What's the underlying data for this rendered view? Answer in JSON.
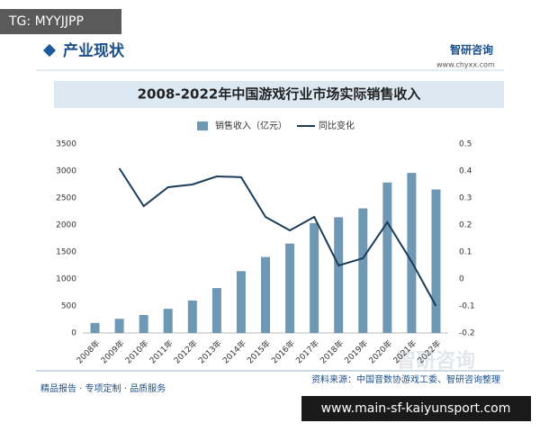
{
  "overlay_top": "TG: MYYJJPP",
  "header": {
    "title": "产业现状",
    "brand": "智研咨询",
    "url": "www.chyxx.com"
  },
  "chart_data": {
    "type": "bar",
    "title": "2008-2022年中国游戏行业市场实际销售收入",
    "categories": [
      "2008年",
      "2009年",
      "2010年",
      "2011年",
      "2012年",
      "2013年",
      "2014年",
      "2015年",
      "2016年",
      "2017年",
      "2018年",
      "2019年",
      "2020年",
      "2021年",
      "2022年"
    ],
    "series": [
      {
        "name": "销售收入（亿元）",
        "type": "bar",
        "color": "#6f98b4",
        "values": [
          186,
          263,
          333,
          447,
          602,
          832,
          1145,
          1407,
          1656,
          2036,
          2144,
          2308,
          2787,
          2965,
          2658
        ]
      },
      {
        "name": "同比变化",
        "type": "line",
        "axis": "y2",
        "color": "#1d3c58",
        "values": [
          null,
          0.41,
          0.27,
          0.34,
          0.35,
          0.38,
          0.377,
          0.23,
          0.18,
          0.23,
          0.05,
          0.077,
          0.21,
          0.064,
          -0.1
        ]
      }
    ],
    "ylim": [
      0,
      3500
    ],
    "yticks": [
      0,
      500,
      1000,
      1500,
      2000,
      2500,
      3000,
      3500
    ],
    "y2lim": [
      -0.2,
      0.5
    ],
    "y2ticks": [
      -0.2,
      -0.1,
      0,
      0.1,
      0.2,
      0.3,
      0.4,
      0.5
    ]
  },
  "source": "资料来源：中国音数协游戏工委、智研咨询整理",
  "footer": {
    "slogan": "精品报告 · 专项定制 · 品质服务",
    "watermark": "智研咨询"
  },
  "overlay_bottom": "www.main-sf-kaiyunsport.com"
}
